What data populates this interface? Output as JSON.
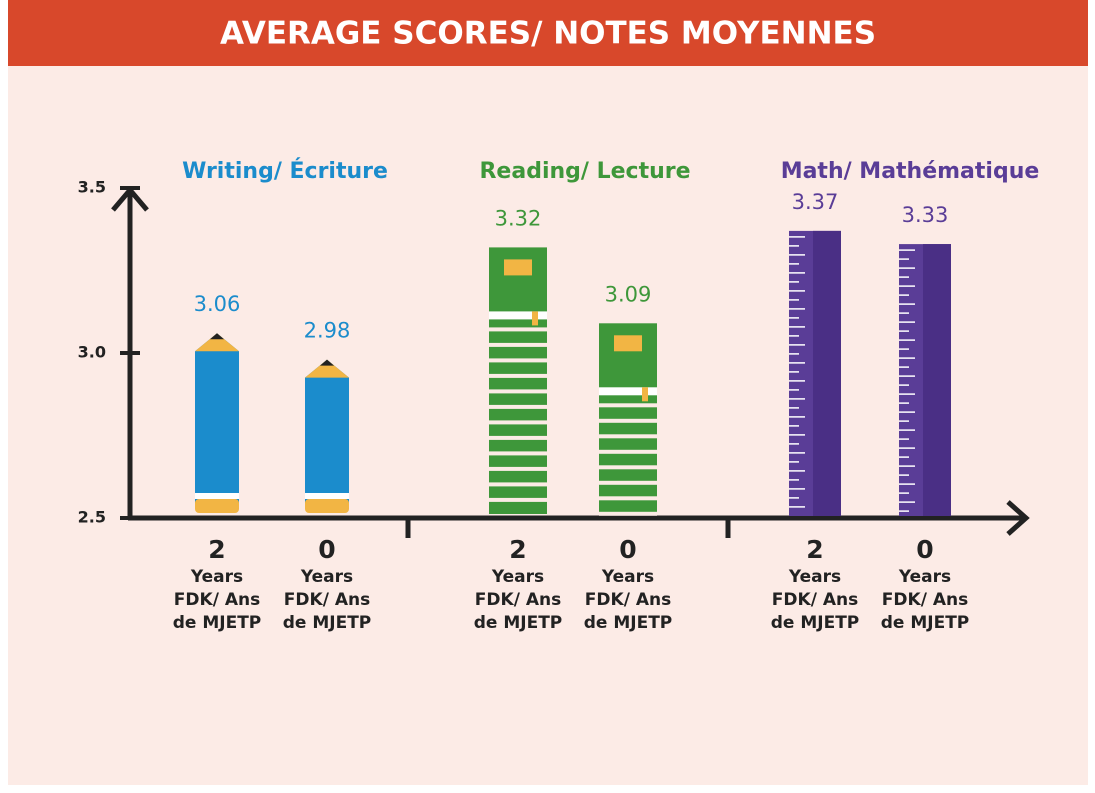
{
  "chart_data": {
    "type": "bar",
    "title": "AVERAGE SCORES/ NOTES MOYENNES",
    "ylim": [
      2.5,
      3.5
    ],
    "yticks": [
      2.5,
      {
        "value": 3,
        "label": "3.0"
      },
      3.5
    ],
    "category_label": "Years FDK/ Ans de MJETP",
    "groups": [
      {
        "name": "Writing/ Écriture",
        "color": "#1b8ccc",
        "categories": [
          "2",
          "0"
        ],
        "values": [
          3.06,
          2.98
        ]
      },
      {
        "name": "Reading/ Lecture",
        "color": "#3e973a",
        "categories": [
          "2",
          "0"
        ],
        "values": [
          3.32,
          3.09
        ]
      },
      {
        "name": "Math/ Mathématique",
        "color": "#5a3d97",
        "categories": [
          "2",
          "0"
        ],
        "values": [
          3.37,
          3.33
        ]
      }
    ]
  }
}
